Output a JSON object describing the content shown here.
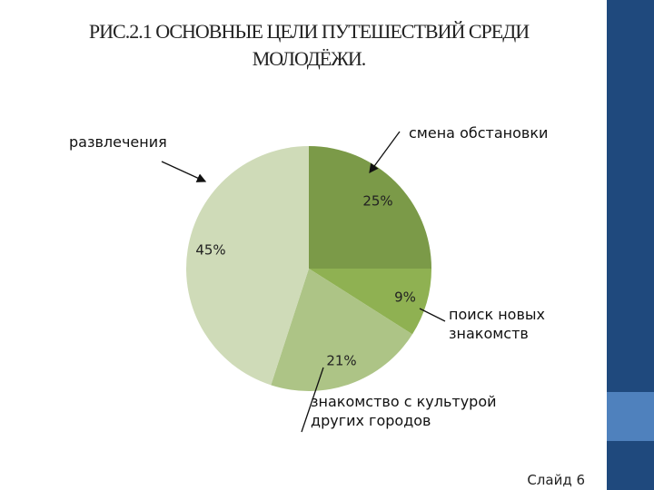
{
  "chart_data": {
    "type": "pie",
    "title": "РИС.2.1 ОСНОВНЫЕ ЦЕЛИ ПУТЕШЕСТВИЙ СРЕДИ МОЛОДЁЖИ.",
    "categories": [
      "смена обстановки",
      "поиск новых знакомств",
      "знакомство  с культурой других городов",
      "развлечения"
    ],
    "values": [
      25,
      9,
      21,
      45
    ],
    "value_labels": [
      "25%",
      "9%",
      "21%",
      "45%"
    ],
    "colors": [
      "#7b9a48",
      "#8fb152",
      "#adc486",
      "#cfdbb8"
    ]
  },
  "slide_number": "Слайд 6"
}
